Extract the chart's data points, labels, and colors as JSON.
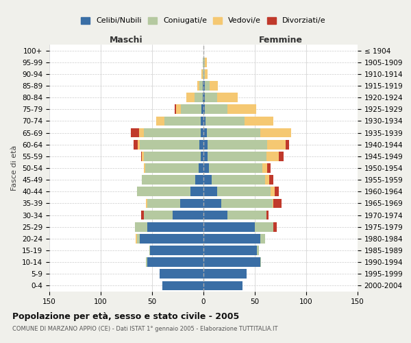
{
  "age_groups": [
    "0-4",
    "5-9",
    "10-14",
    "15-19",
    "20-24",
    "25-29",
    "30-34",
    "35-39",
    "40-44",
    "45-49",
    "50-54",
    "55-59",
    "60-64",
    "65-69",
    "70-74",
    "75-79",
    "80-84",
    "85-89",
    "90-94",
    "95-99",
    "100+"
  ],
  "birth_years": [
    "2000-2004",
    "1995-1999",
    "1990-1994",
    "1985-1989",
    "1980-1984",
    "1975-1979",
    "1970-1974",
    "1965-1969",
    "1960-1964",
    "1955-1959",
    "1950-1954",
    "1945-1949",
    "1940-1944",
    "1935-1939",
    "1930-1934",
    "1925-1929",
    "1920-1924",
    "1915-1919",
    "1910-1914",
    "1905-1909",
    "≤ 1904"
  ],
  "males": {
    "celibi": [
      40,
      43,
      55,
      52,
      62,
      55,
      30,
      23,
      13,
      8,
      5,
      3,
      4,
      3,
      3,
      2,
      1,
      1,
      0,
      0,
      0
    ],
    "coniugati": [
      0,
      0,
      1,
      1,
      3,
      12,
      28,
      32,
      52,
      52,
      52,
      55,
      58,
      55,
      35,
      20,
      8,
      3,
      1,
      1,
      0
    ],
    "vedovi": [
      0,
      0,
      0,
      0,
      1,
      0,
      0,
      1,
      0,
      0,
      1,
      2,
      2,
      5,
      8,
      5,
      8,
      2,
      1,
      0,
      0
    ],
    "divorziati": [
      0,
      0,
      0,
      0,
      0,
      0,
      3,
      0,
      0,
      0,
      0,
      1,
      4,
      8,
      0,
      1,
      0,
      0,
      0,
      0,
      0
    ]
  },
  "females": {
    "nubili": [
      38,
      42,
      55,
      52,
      55,
      50,
      23,
      17,
      13,
      8,
      5,
      4,
      4,
      3,
      2,
      1,
      1,
      1,
      0,
      0,
      0
    ],
    "coniugate": [
      0,
      0,
      1,
      2,
      5,
      18,
      38,
      50,
      52,
      52,
      52,
      57,
      58,
      52,
      38,
      22,
      12,
      5,
      1,
      1,
      0
    ],
    "vedove": [
      0,
      0,
      0,
      0,
      0,
      0,
      0,
      1,
      4,
      4,
      5,
      12,
      18,
      30,
      28,
      28,
      20,
      8,
      3,
      2,
      0
    ],
    "divorziate": [
      0,
      0,
      0,
      0,
      0,
      3,
      2,
      8,
      4,
      4,
      3,
      5,
      3,
      0,
      0,
      0,
      0,
      0,
      0,
      0,
      0
    ]
  },
  "colors": {
    "celibi": "#3a6ea5",
    "coniugati": "#b5c9a0",
    "vedovi": "#f5c872",
    "divorziati": "#c0392b"
  },
  "xlim": 150,
  "title": "Popolazione per età, sesso e stato civile - 2005",
  "subtitle": "COMUNE DI MARZANO APPIO (CE) - Dati ISTAT 1° gennaio 2005 - Elaborazione TUTTITALIA.IT",
  "ylabel_left": "Fasce di età",
  "xlabel_maschi": "Maschi",
  "xlabel_femmine": "Femmine",
  "legend_labels": [
    "Celibi/Nubili",
    "Coniugati/e",
    "Vedovi/e",
    "Divorziati/e"
  ],
  "bg_color": "#f0f0eb",
  "plot_bg": "#ffffff"
}
